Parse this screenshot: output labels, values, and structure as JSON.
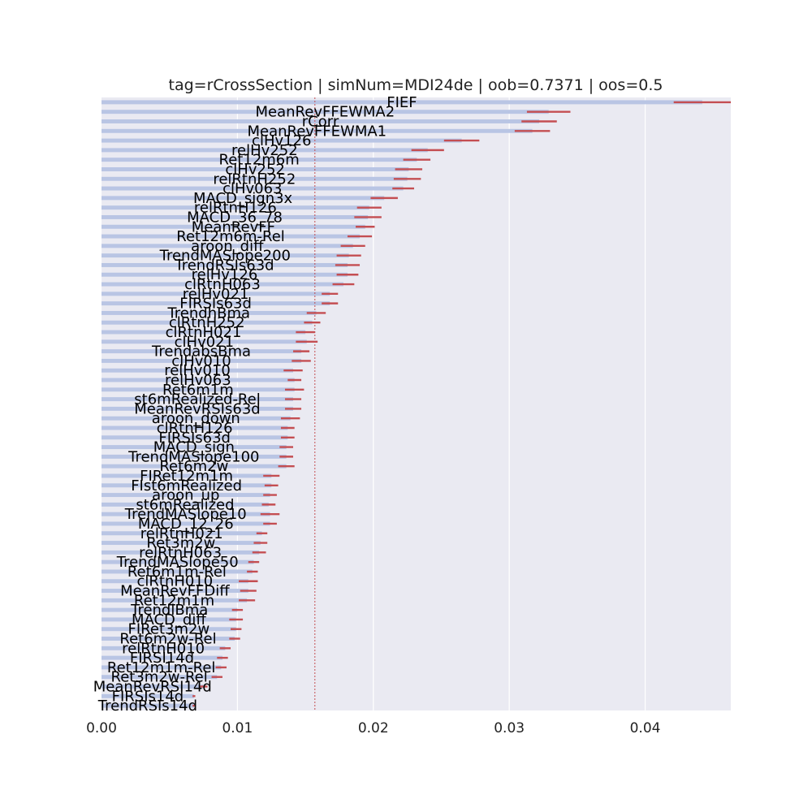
{
  "chart_data": {
    "type": "bar",
    "orientation": "horizontal",
    "title": "tag=rCrossSection | simNum=MDI24de | oob=0.7371 | oos=0.5",
    "xlabel": "",
    "ylabel": "",
    "xlim": [
      0,
      0.0463
    ],
    "xticks": [
      0.0,
      0.01,
      0.02,
      0.03,
      0.04
    ],
    "xtick_labels": [
      "0.00",
      "0.01",
      "0.02",
      "0.03",
      "0.04"
    ],
    "grid": true,
    "reference_line": 0.0157,
    "categories": [
      "FIEF",
      "MeanRevFFEWMA2",
      "rCorr",
      "MeanRevFFEWMA1",
      "clHv126",
      "relHv252",
      "Ret12m6m",
      "clHv252",
      "relRtnH252",
      "clHv063",
      "MACD_sign3x",
      "relRtnH126",
      "MACD_36_78",
      "MeanRevFF",
      "Ret12m6m-Rel",
      "aroon_diff",
      "TrendMASlope200",
      "TrendRSIs63d",
      "relHv126",
      "clRtnH063",
      "relHv021",
      "FIRSIs63d",
      "TrendhBma",
      "clRtnH252",
      "clRtnH021",
      "clHv021",
      "TrendabsBma",
      "clHv010",
      "relHv010",
      "relHv063",
      "Ret6m1m",
      "st6mRealized-Rel",
      "MeanRevRSIs63d",
      "aroon_down",
      "clRtnH126",
      "FIRSIs63d",
      "MACD_sign",
      "TrendMASlope100",
      "Ret6m2w",
      "FIRet12m1m",
      "FIst6mRealized",
      "aroon_up",
      "st6mRealized",
      "TrendMASlope10",
      "MACD_12_26",
      "relRtnH021",
      "Ret3m2w",
      "relRtnH063",
      "TrendMASlope50",
      "Ret6m1m-Rel",
      "clRtnH010",
      "MeanRevFFDiff",
      "Ret12m1m",
      "TrendlBma",
      "MACD_diff",
      "FIRet3m2w",
      "Ret6m2w-Rel",
      "relRtnH010",
      "FIRSI14d",
      "Ret12m1m-Rel",
      "Ret3m2w-Rel",
      "MeanRevRSI14d",
      "FIRSIs14d",
      "TrendRSIs14d"
    ],
    "values": [
      0.0442,
      0.0329,
      0.0322,
      0.0317,
      0.0265,
      0.024,
      0.0232,
      0.0226,
      0.0225,
      0.0222,
      0.0208,
      0.0197,
      0.0196,
      0.0194,
      0.019,
      0.0185,
      0.0182,
      0.0181,
      0.0181,
      0.0178,
      0.0168,
      0.0168,
      0.0158,
      0.0155,
      0.015,
      0.0151,
      0.0147,
      0.0147,
      0.0141,
      0.0142,
      0.0142,
      0.0141,
      0.0141,
      0.0139,
      0.0137,
      0.0137,
      0.0136,
      0.0136,
      0.0136,
      0.0125,
      0.0125,
      0.0124,
      0.0123,
      0.0124,
      0.0124,
      0.0118,
      0.0117,
      0.0116,
      0.0112,
      0.0111,
      0.0108,
      0.0108,
      0.0107,
      0.01,
      0.0099,
      0.0099,
      0.0098,
      0.0091,
      0.0089,
      0.0088,
      0.0085,
      0.0075,
      0.0068,
      0.0068
    ],
    "errors": [
      0.0021,
      0.0016,
      0.0013,
      0.0013,
      0.0013,
      0.0012,
      0.001,
      0.001,
      0.001,
      0.0008,
      0.001,
      0.0009,
      0.001,
      0.0007,
      0.0009,
      0.0009,
      0.0009,
      0.0009,
      0.0008,
      0.0008,
      0.0006,
      0.0006,
      0.0007,
      0.0006,
      0.0007,
      0.0008,
      0.0006,
      0.0007,
      0.0007,
      0.0005,
      0.0007,
      0.0006,
      0.0006,
      0.0007,
      0.0005,
      0.0005,
      0.0005,
      0.0005,
      0.0006,
      0.0006,
      0.0005,
      0.0005,
      0.0005,
      0.0007,
      0.0005,
      0.0004,
      0.0005,
      0.0005,
      0.0004,
      0.0004,
      0.0007,
      0.0006,
      0.0006,
      0.0004,
      0.0005,
      0.0004,
      0.0004,
      0.0004,
      0.0004,
      0.0004,
      0.0004,
      0.0003,
      0.0001,
      0.0001
    ],
    "colors": {
      "plot_background": "#eaeaf2",
      "grid": "#ffffff",
      "bar": "#b9c5e4",
      "error_bar": "#c44e52",
      "reference_line": "#c44e52",
      "text": "#222222"
    }
  }
}
